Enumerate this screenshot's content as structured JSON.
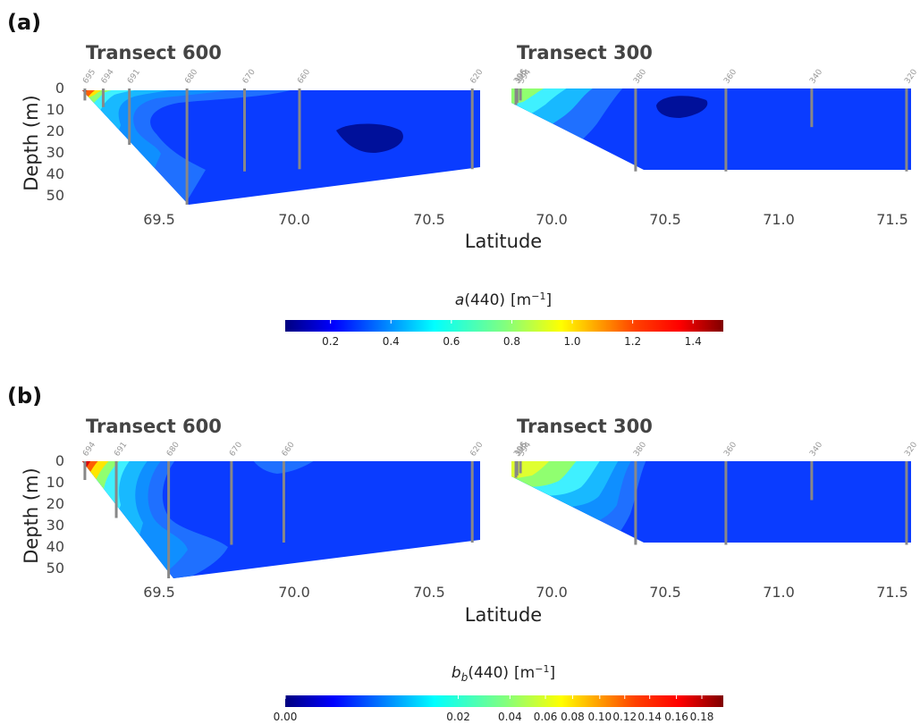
{
  "chart_data": [
    {
      "panel_label": "(a)",
      "type": "contour",
      "xlabel": "Latitude",
      "ylabel": "Depth (m)",
      "colorbar": {
        "title_base": "a",
        "title_arg": "(440)",
        "title_unit": "[m",
        "title_unit_sup": "−1",
        "title_unit_close": "]",
        "ticks": [
          "0.2",
          "0.4",
          "0.6",
          "0.8",
          "1.0",
          "1.2",
          "1.4"
        ],
        "tick_values": [
          0.2,
          0.4,
          0.6,
          0.8,
          1.0,
          1.2,
          1.4
        ],
        "range": [
          0.05,
          1.5
        ],
        "colormap": "jet"
      },
      "subplots": [
        {
          "title": "Transect 600",
          "xlim": [
            69.23,
            70.75
          ],
          "ylim": [
            0,
            52
          ],
          "x_ticks": [
            "69.5",
            "70.0",
            "70.5"
          ],
          "x_tick_values": [
            69.5,
            70.0,
            70.5
          ],
          "y_ticks": [
            "0",
            "10",
            "20",
            "30",
            "40",
            "50"
          ],
          "y_tick_values": [
            0,
            10,
            20,
            30,
            40,
            50
          ],
          "stations": [
            {
              "label": "695",
              "lat": 69.24,
              "depth": 5
            },
            {
              "label": "694",
              "lat": 69.31,
              "depth": 8
            },
            {
              "label": "691",
              "lat": 69.41,
              "depth": 25
            },
            {
              "label": "680",
              "lat": 69.63,
              "depth": 52
            },
            {
              "label": "670",
              "lat": 69.85,
              "depth": 37
            },
            {
              "label": "660",
              "lat": 70.06,
              "depth": 36
            },
            {
              "label": "620",
              "lat": 70.72,
              "depth": 36
            }
          ]
        },
        {
          "title": "Transect 300",
          "xlim": [
            69.85,
            71.62
          ],
          "ylim": [
            0,
            52
          ],
          "x_ticks": [
            "70.0",
            "70.5",
            "71.0",
            "71.5"
          ],
          "x_tick_values": [
            70.0,
            70.5,
            71.0,
            71.5
          ],
          "stations": [
            {
              "label": "396",
              "lat": 69.87,
              "depth": 7
            },
            {
              "label": "395",
              "lat": 69.875,
              "depth": 6
            },
            {
              "label": "394",
              "lat": 69.89,
              "depth": 5
            },
            {
              "label": "380",
              "lat": 70.4,
              "depth": 37
            },
            {
              "label": "360",
              "lat": 70.8,
              "depth": 37
            },
            {
              "label": "340",
              "lat": 71.18,
              "depth": 17
            },
            {
              "label": "320",
              "lat": 71.6,
              "depth": 37
            }
          ]
        }
      ]
    },
    {
      "panel_label": "(b)",
      "type": "contour",
      "xlabel": "Latitude",
      "ylabel": "Depth (m)",
      "colorbar": {
        "title_base": "b",
        "title_sub": "b",
        "title_arg": "(440)",
        "title_unit": "[m",
        "title_unit_sup": "−1",
        "title_unit_close": "]",
        "ticks": [
          "0.00",
          "0.02",
          "0.04",
          "0.06",
          "0.08",
          "0.10",
          "0.12",
          "0.14",
          "0.16",
          "0.18"
        ],
        "tick_values": [
          0.0,
          0.02,
          0.04,
          0.06,
          0.08,
          0.1,
          0.12,
          0.14,
          0.16,
          0.18
        ],
        "scale": "power",
        "colormap": "jet"
      },
      "subplots": [
        {
          "title": "Transect 600",
          "xlim": [
            69.23,
            70.75
          ],
          "ylim": [
            0,
            52
          ],
          "x_ticks": [
            "69.5",
            "70.0",
            "70.5"
          ],
          "x_tick_values": [
            69.5,
            70.0,
            70.5
          ],
          "y_ticks": [
            "0",
            "10",
            "20",
            "30",
            "40",
            "50"
          ],
          "y_tick_values": [
            0,
            10,
            20,
            30,
            40,
            50
          ],
          "stations": [
            {
              "label": "694",
              "lat": 69.24,
              "depth": 8
            },
            {
              "label": "691",
              "lat": 69.36,
              "depth": 25
            },
            {
              "label": "680",
              "lat": 69.56,
              "depth": 52
            },
            {
              "label": "670",
              "lat": 69.8,
              "depth": 37
            },
            {
              "label": "660",
              "lat": 70.0,
              "depth": 36
            },
            {
              "label": "620",
              "lat": 70.72,
              "depth": 36
            }
          ]
        },
        {
          "title": "Transect 300",
          "xlim": [
            69.85,
            71.62
          ],
          "ylim": [
            0,
            52
          ],
          "x_ticks": [
            "70.0",
            "70.5",
            "71.0",
            "71.5"
          ],
          "x_tick_values": [
            70.0,
            70.5,
            71.0,
            71.5
          ],
          "stations": [
            {
              "label": "396",
              "lat": 69.87,
              "depth": 7
            },
            {
              "label": "395",
              "lat": 69.875,
              "depth": 6
            },
            {
              "label": "394",
              "lat": 69.89,
              "depth": 5
            },
            {
              "label": "380",
              "lat": 70.4,
              "depth": 37
            },
            {
              "label": "360",
              "lat": 70.8,
              "depth": 37
            },
            {
              "label": "340",
              "lat": 71.18,
              "depth": 17
            },
            {
              "label": "320",
              "lat": 71.6,
              "depth": 37
            }
          ]
        }
      ]
    }
  ],
  "colors": {
    "station_line": "#888888",
    "cmap": [
      "#00007f",
      "#0000ff",
      "#0080ff",
      "#00ffff",
      "#80ff80",
      "#ffff00",
      "#ff8000",
      "#ff0000",
      "#800000"
    ]
  }
}
